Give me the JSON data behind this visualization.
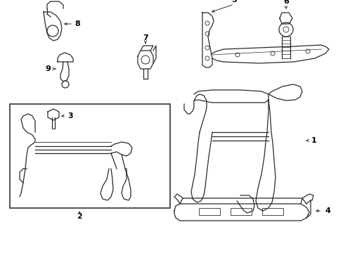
{
  "background_color": "#ffffff",
  "line_color": "#2a2a2a",
  "text_color": "#000000",
  "border_color": "#333333",
  "fig_width": 4.89,
  "fig_height": 3.6,
  "dpi": 100
}
